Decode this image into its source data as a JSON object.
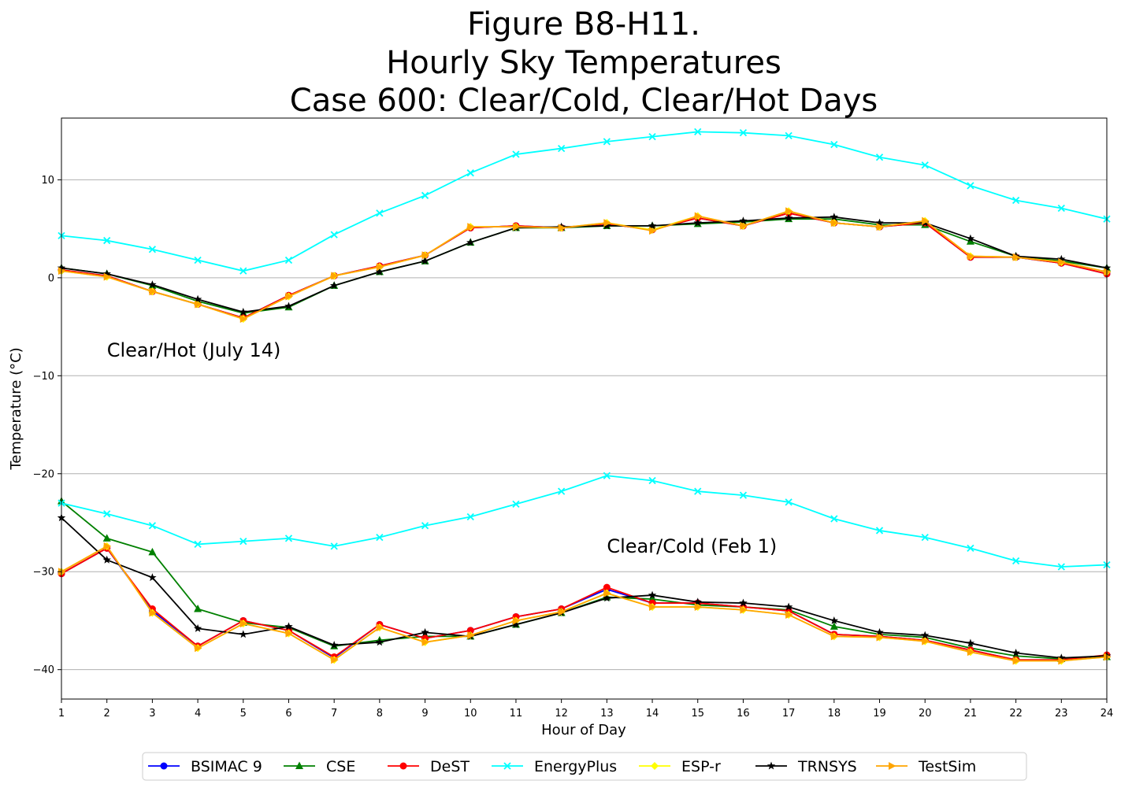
{
  "chart_data": {
    "type": "line",
    "title": [
      "Figure B8-H11.",
      "Hourly Sky Temperatures",
      "Case 600: Clear/Cold, Clear/Hot Days"
    ],
    "xlabel": "Hour of Day",
    "ylabel": "Temperature ($^\\circ$C)",
    "ylabel_display": "Temperature (°C)",
    "xlim": [
      1,
      24
    ],
    "ylim": [
      -43,
      16.3
    ],
    "x": [
      1,
      2,
      3,
      4,
      5,
      6,
      7,
      8,
      9,
      10,
      11,
      12,
      13,
      14,
      15,
      16,
      17,
      18,
      19,
      20,
      21,
      22,
      23,
      24
    ],
    "x_ticks": [
      1,
      2,
      3,
      4,
      5,
      6,
      7,
      8,
      9,
      10,
      11,
      12,
      13,
      14,
      15,
      16,
      17,
      18,
      19,
      20,
      21,
      22,
      23,
      24
    ],
    "y_ticks": [
      10,
      0,
      -10,
      -20,
      -30,
      -40
    ],
    "grid": "horizontal",
    "legend_position": "bottom",
    "annotations": [
      {
        "text": "Clear/Hot (July 14)",
        "x": 2,
        "y": -7.4
      },
      {
        "text": "Clear/Cold (Feb 1)",
        "x": 13,
        "y": -27.4
      }
    ],
    "series": [
      {
        "name": "BSIMAC 9",
        "color": "#0000ff",
        "marker": "circle",
        "hot": [
          0.8,
          0.2,
          -1.4,
          -2.7,
          -4.1,
          -1.8,
          0.2,
          1.2,
          2.3,
          5.1,
          5.3,
          5.1,
          5.5,
          4.9,
          6.1,
          5.3,
          6.6,
          5.6,
          5.2,
          5.6,
          2.1,
          2.1,
          1.5,
          0.4
        ],
        "cold": [
          -30.2,
          -27.6,
          -34.0,
          -37.6,
          -35.0,
          -36.0,
          -38.8,
          -35.4,
          -36.8,
          -36.0,
          -34.6,
          -33.8,
          -31.8,
          -33.2,
          -33.2,
          -33.6,
          -34.0,
          -36.4,
          -36.6,
          -37.0,
          -38.0,
          -39.0,
          -39.0,
          -38.6
        ]
      },
      {
        "name": "CSE",
        "color": "#008000",
        "marker": "triangle-up",
        "hot": [
          1.0,
          0.4,
          -0.8,
          -2.4,
          -3.6,
          -3.0,
          -0.8,
          0.6,
          1.7,
          3.6,
          5.1,
          5.1,
          5.3,
          5.3,
          5.5,
          5.7,
          6.0,
          6.0,
          5.4,
          5.4,
          3.7,
          2.2,
          1.7,
          1.0
        ],
        "cold": [
          -22.8,
          -26.6,
          -28.0,
          -33.8,
          -35.2,
          -35.7,
          -37.6,
          -37.0,
          -36.6,
          -36.6,
          -35.4,
          -34.2,
          -32.6,
          -32.8,
          -33.4,
          -33.6,
          -33.9,
          -35.6,
          -36.4,
          -36.7,
          -37.8,
          -38.6,
          -38.9,
          -38.7
        ]
      },
      {
        "name": "DeST",
        "color": "#ff0000",
        "marker": "circle",
        "hot": [
          0.8,
          0.2,
          -1.4,
          -2.7,
          -4.1,
          -1.8,
          0.2,
          1.2,
          2.3,
          5.1,
          5.3,
          5.1,
          5.5,
          4.9,
          6.1,
          5.3,
          6.6,
          5.6,
          5.2,
          5.6,
          2.1,
          2.1,
          1.5,
          0.4
        ],
        "cold": [
          -30.2,
          -27.6,
          -33.8,
          -37.6,
          -35.0,
          -36.0,
          -38.7,
          -35.4,
          -36.8,
          -36.0,
          -34.6,
          -33.8,
          -31.6,
          -33.2,
          -33.2,
          -33.6,
          -34.0,
          -36.4,
          -36.6,
          -37.0,
          -38.0,
          -39.0,
          -39.0,
          -38.5
        ]
      },
      {
        "name": "EnergyPlus",
        "color": "#00ffff",
        "marker": "x",
        "hot": [
          4.3,
          3.8,
          2.9,
          1.8,
          0.7,
          1.8,
          4.4,
          6.6,
          8.4,
          10.7,
          12.6,
          13.2,
          13.9,
          14.4,
          14.9,
          14.8,
          14.5,
          13.6,
          12.3,
          11.5,
          9.4,
          7.9,
          7.1,
          6.0
        ],
        "cold": [
          -23.0,
          -24.1,
          -25.3,
          -27.2,
          -26.9,
          -26.6,
          -27.4,
          -26.5,
          -25.3,
          -24.4,
          -23.1,
          -21.8,
          -20.2,
          -20.7,
          -21.8,
          -22.2,
          -22.9,
          -24.6,
          -25.8,
          -26.5,
          -27.6,
          -28.9,
          -29.5,
          -29.3
        ]
      },
      {
        "name": "ESP-r",
        "color": "#ffff00",
        "marker": "diamond",
        "hot": [
          0.7,
          0.1,
          -1.4,
          -2.7,
          -4.2,
          -1.9,
          0.2,
          1.1,
          2.3,
          5.2,
          5.2,
          5.1,
          5.6,
          4.9,
          6.3,
          5.3,
          6.8,
          5.6,
          5.2,
          5.8,
          2.2,
          2.1,
          1.6,
          0.6
        ],
        "cold": [
          -30.0,
          -27.4,
          -34.2,
          -37.8,
          -35.3,
          -36.3,
          -39.0,
          -35.7,
          -37.2,
          -36.5,
          -35.0,
          -34.1,
          -32.2,
          -33.6,
          -33.6,
          -33.9,
          -34.4,
          -36.6,
          -36.7,
          -37.1,
          -38.2,
          -39.1,
          -39.1,
          -38.7
        ]
      },
      {
        "name": "TRNSYS",
        "color": "#000000",
        "marker": "star",
        "hot": [
          1.0,
          0.4,
          -0.7,
          -2.2,
          -3.5,
          -2.9,
          -0.8,
          0.6,
          1.7,
          3.6,
          5.1,
          5.2,
          5.3,
          5.3,
          5.6,
          5.8,
          6.1,
          6.2,
          5.6,
          5.6,
          4.0,
          2.2,
          1.9,
          1.0
        ],
        "cold": [
          -24.5,
          -28.8,
          -30.6,
          -35.8,
          -36.4,
          -35.6,
          -37.5,
          -37.2,
          -36.2,
          -36.6,
          -35.4,
          -34.2,
          -32.7,
          -32.4,
          -33.1,
          -33.2,
          -33.6,
          -35.0,
          -36.2,
          -36.5,
          -37.3,
          -38.3,
          -38.8,
          -38.6
        ]
      },
      {
        "name": "TestSim",
        "color": "#ffa500",
        "marker": "triangle-right",
        "hot": [
          0.7,
          0.1,
          -1.4,
          -2.7,
          -4.2,
          -1.9,
          0.2,
          1.1,
          2.3,
          5.2,
          5.2,
          5.1,
          5.6,
          4.8,
          6.3,
          5.3,
          6.8,
          5.6,
          5.2,
          5.8,
          2.2,
          2.1,
          1.6,
          0.6
        ],
        "cold": [
          -30.0,
          -27.4,
          -34.2,
          -37.8,
          -35.3,
          -36.3,
          -39.0,
          -35.7,
          -37.2,
          -36.5,
          -35.0,
          -34.1,
          -32.2,
          -33.6,
          -33.6,
          -33.9,
          -34.4,
          -36.6,
          -36.7,
          -37.1,
          -38.2,
          -39.1,
          -39.1,
          -38.7
        ]
      }
    ]
  }
}
